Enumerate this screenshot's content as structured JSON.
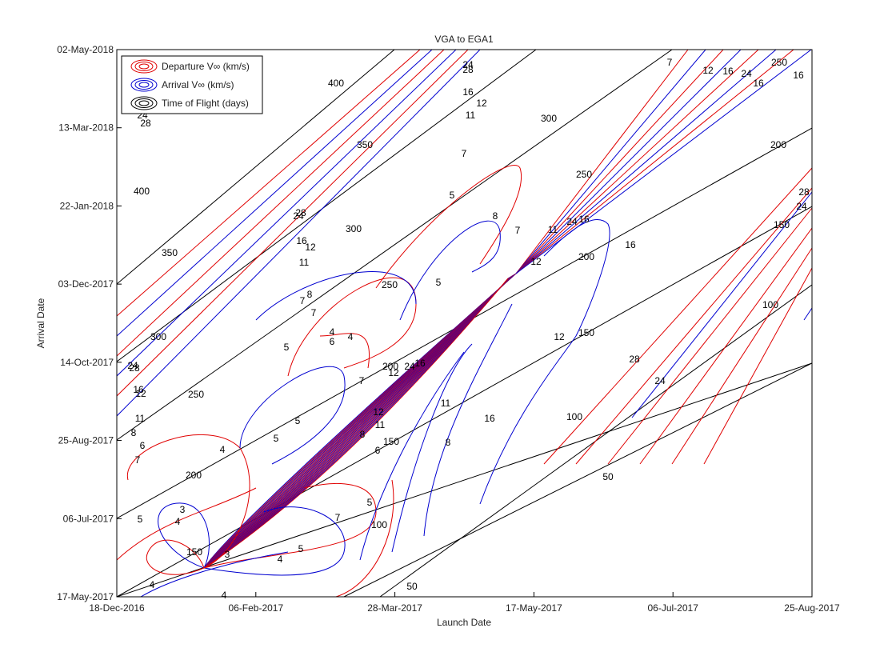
{
  "chart_data": {
    "type": "contour",
    "title": "VGA to EGA1",
    "xlabel": "Launch Date",
    "ylabel": "Arrival Date",
    "xlim": [
      "18-Dec-2016",
      "25-Aug-2017"
    ],
    "ylim": [
      "17-May-2017",
      "02-May-2018"
    ],
    "x_ticks": [
      "18-Dec-2016",
      "06-Feb-2017",
      "28-Mar-2017",
      "17-May-2017",
      "06-Jul-2017",
      "25-Aug-2017"
    ],
    "y_ticks": [
      "17-May-2017",
      "06-Jul-2017",
      "25-Aug-2017",
      "14-Oct-2017",
      "03-Dec-2017",
      "22-Jan-2018",
      "13-Mar-2018",
      "02-May-2018"
    ],
    "grid": false,
    "legend_position": "top-left",
    "legend": [
      {
        "label": "Departure V∞ (km/s)",
        "color": "#e00000",
        "icon": "red-ellipse-icon"
      },
      {
        "label": "Arrival V∞ (km/s)",
        "color": "#0000d0",
        "icon": "blue-ellipse-icon"
      },
      {
        "label": "Time of Flight (days)",
        "color": "#000000",
        "icon": "black-ellipse-icon"
      }
    ],
    "series": [
      {
        "name": "Time of Flight (days)",
        "color": "#000000",
        "levels": [
          50,
          100,
          150,
          200,
          250,
          300,
          350,
          400
        ]
      },
      {
        "name": "Departure V∞ (km/s)",
        "color": "#e00000",
        "levels": [
          3,
          4,
          5,
          6,
          7,
          11,
          12,
          16,
          24,
          28
        ]
      },
      {
        "name": "Arrival V∞ (km/s)",
        "color": "#0000d0",
        "levels": [
          3,
          4,
          5,
          7,
          8,
          11,
          12,
          16,
          24,
          28
        ]
      }
    ]
  }
}
